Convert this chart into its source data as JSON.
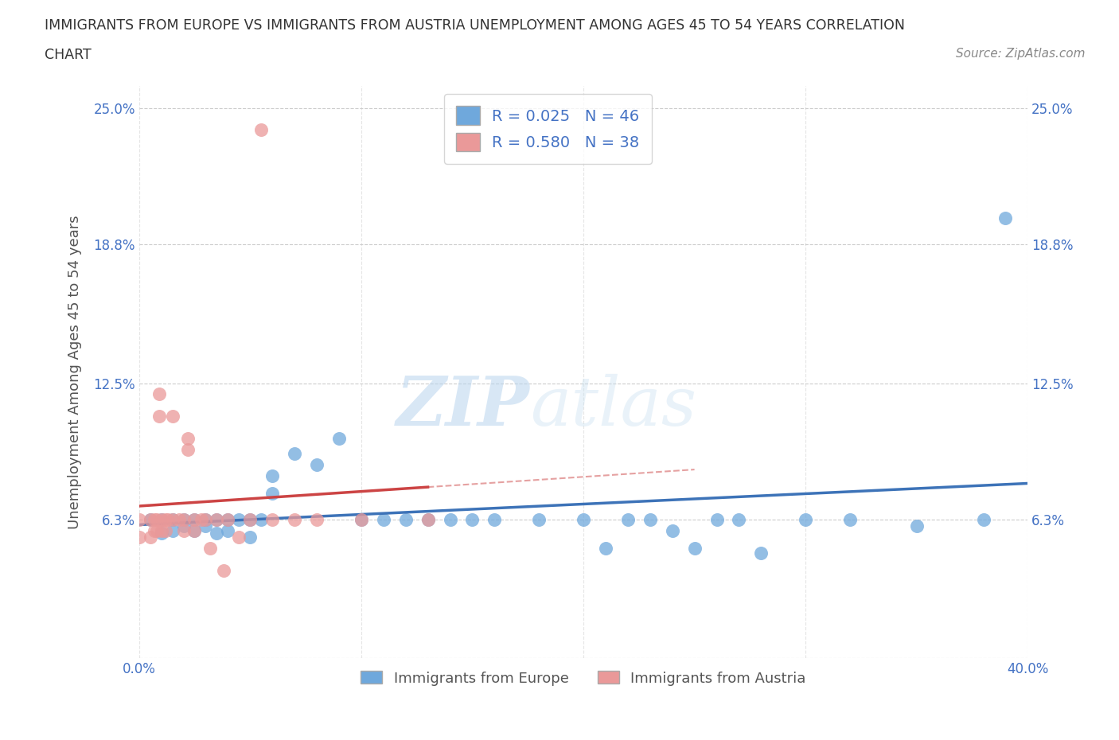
{
  "title_line1": "IMMIGRANTS FROM EUROPE VS IMMIGRANTS FROM AUSTRIA UNEMPLOYMENT AMONG AGES 45 TO 54 YEARS CORRELATION",
  "title_line2": "CHART",
  "source": "Source: ZipAtlas.com",
  "ylabel": "Unemployment Among Ages 45 to 54 years",
  "xlim": [
    0.0,
    0.4
  ],
  "ylim": [
    0.0,
    0.26
  ],
  "yticks": [
    0.0,
    0.063,
    0.125,
    0.188,
    0.25
  ],
  "ytick_labels": [
    "",
    "6.3%",
    "12.5%",
    "18.8%",
    "25.0%"
  ],
  "xticks": [
    0.0,
    0.1,
    0.2,
    0.3,
    0.4
  ],
  "xtick_labels": [
    "0.0%",
    "",
    "",
    "",
    "40.0%"
  ],
  "europe_color": "#6fa8dc",
  "austria_color": "#ea9999",
  "europe_line_color": "#3d73b8",
  "austria_line_color": "#cc4444",
  "europe_R": 0.025,
  "europe_N": 46,
  "austria_R": 0.58,
  "austria_N": 38,
  "background_color": "#ffffff",
  "grid_color": "#cccccc",
  "watermark_zip": "ZIP",
  "watermark_atlas": "atlas",
  "europe_x": [
    0.005,
    0.01,
    0.01,
    0.015,
    0.015,
    0.02,
    0.02,
    0.025,
    0.025,
    0.03,
    0.03,
    0.035,
    0.035,
    0.04,
    0.04,
    0.045,
    0.05,
    0.05,
    0.055,
    0.06,
    0.06,
    0.07,
    0.08,
    0.09,
    0.1,
    0.11,
    0.12,
    0.13,
    0.14,
    0.15,
    0.16,
    0.18,
    0.2,
    0.21,
    0.22,
    0.23,
    0.24,
    0.25,
    0.26,
    0.27,
    0.28,
    0.3,
    0.32,
    0.35,
    0.38,
    0.39
  ],
  "europe_y": [
    0.063,
    0.063,
    0.057,
    0.063,
    0.058,
    0.063,
    0.06,
    0.063,
    0.058,
    0.063,
    0.06,
    0.063,
    0.057,
    0.063,
    0.058,
    0.063,
    0.063,
    0.055,
    0.063,
    0.075,
    0.083,
    0.093,
    0.088,
    0.1,
    0.063,
    0.063,
    0.063,
    0.063,
    0.063,
    0.063,
    0.063,
    0.063,
    0.063,
    0.05,
    0.063,
    0.063,
    0.058,
    0.05,
    0.063,
    0.063,
    0.048,
    0.063,
    0.063,
    0.06,
    0.063,
    0.2
  ],
  "austria_x": [
    0.0,
    0.0,
    0.005,
    0.005,
    0.007,
    0.007,
    0.008,
    0.008,
    0.009,
    0.009,
    0.01,
    0.01,
    0.012,
    0.012,
    0.013,
    0.015,
    0.015,
    0.018,
    0.02,
    0.02,
    0.022,
    0.022,
    0.025,
    0.025,
    0.028,
    0.03,
    0.032,
    0.035,
    0.038,
    0.04,
    0.045,
    0.05,
    0.055,
    0.06,
    0.07,
    0.08,
    0.1,
    0.13
  ],
  "austria_y": [
    0.063,
    0.055,
    0.063,
    0.055,
    0.063,
    0.058,
    0.063,
    0.058,
    0.12,
    0.11,
    0.063,
    0.058,
    0.063,
    0.058,
    0.063,
    0.063,
    0.11,
    0.063,
    0.063,
    0.058,
    0.1,
    0.095,
    0.063,
    0.058,
    0.063,
    0.063,
    0.05,
    0.063,
    0.04,
    0.063,
    0.055,
    0.063,
    0.24,
    0.063,
    0.063,
    0.063,
    0.063,
    0.063
  ]
}
